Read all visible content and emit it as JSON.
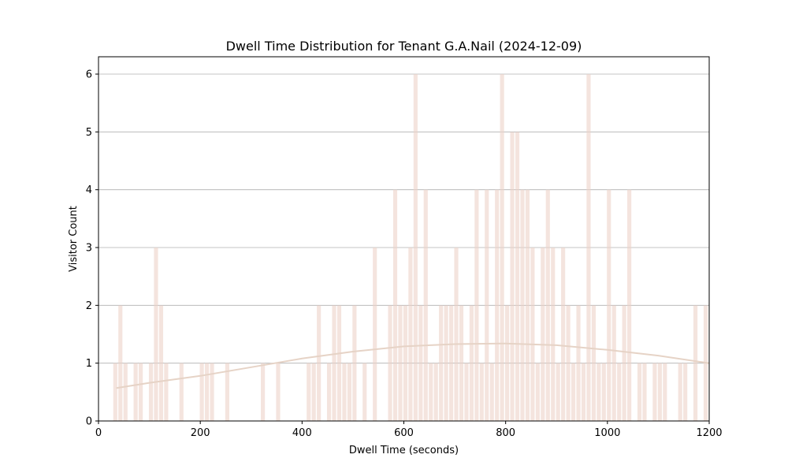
{
  "chart_data": {
    "type": "bar",
    "title": "Dwell Time Distribution for Tenant G.A.Nail (2024-12-09)",
    "xlabel": "Dwell Time (seconds)",
    "ylabel": "Visitor Count",
    "xlim": [
      0,
      1200
    ],
    "ylim": [
      0,
      6.3
    ],
    "xticks": [
      0,
      200,
      400,
      600,
      800,
      1000,
      1200
    ],
    "yticks": [
      0,
      1,
      2,
      3,
      4,
      5,
      6
    ],
    "grid": "y",
    "bar_color": "#ecd2c8",
    "bar_width": 8,
    "bars": [
      {
        "x": 33,
        "count": 1
      },
      {
        "x": 43,
        "count": 2
      },
      {
        "x": 53,
        "count": 1
      },
      {
        "x": 73,
        "count": 1
      },
      {
        "x": 83,
        "count": 1
      },
      {
        "x": 103,
        "count": 1
      },
      {
        "x": 113,
        "count": 3
      },
      {
        "x": 123,
        "count": 2
      },
      {
        "x": 133,
        "count": 1
      },
      {
        "x": 163,
        "count": 1
      },
      {
        "x": 203,
        "count": 1
      },
      {
        "x": 213,
        "count": 1
      },
      {
        "x": 223,
        "count": 1
      },
      {
        "x": 253,
        "count": 1
      },
      {
        "x": 323,
        "count": 1
      },
      {
        "x": 353,
        "count": 1
      },
      {
        "x": 413,
        "count": 1
      },
      {
        "x": 423,
        "count": 1
      },
      {
        "x": 433,
        "count": 2
      },
      {
        "x": 453,
        "count": 1
      },
      {
        "x": 463,
        "count": 2
      },
      {
        "x": 473,
        "count": 2
      },
      {
        "x": 483,
        "count": 1
      },
      {
        "x": 493,
        "count": 1
      },
      {
        "x": 503,
        "count": 2
      },
      {
        "x": 523,
        "count": 1
      },
      {
        "x": 543,
        "count": 3
      },
      {
        "x": 573,
        "count": 2
      },
      {
        "x": 583,
        "count": 4
      },
      {
        "x": 593,
        "count": 2
      },
      {
        "x": 603,
        "count": 2
      },
      {
        "x": 613,
        "count": 3
      },
      {
        "x": 623,
        "count": 6
      },
      {
        "x": 633,
        "count": 2
      },
      {
        "x": 643,
        "count": 4
      },
      {
        "x": 653,
        "count": 1
      },
      {
        "x": 663,
        "count": 1
      },
      {
        "x": 673,
        "count": 2
      },
      {
        "x": 683,
        "count": 2
      },
      {
        "x": 693,
        "count": 2
      },
      {
        "x": 703,
        "count": 3
      },
      {
        "x": 713,
        "count": 2
      },
      {
        "x": 723,
        "count": 1
      },
      {
        "x": 733,
        "count": 2
      },
      {
        "x": 743,
        "count": 4
      },
      {
        "x": 753,
        "count": 1
      },
      {
        "x": 763,
        "count": 4
      },
      {
        "x": 773,
        "count": 1
      },
      {
        "x": 783,
        "count": 4
      },
      {
        "x": 793,
        "count": 6
      },
      {
        "x": 803,
        "count": 2
      },
      {
        "x": 813,
        "count": 5
      },
      {
        "x": 823,
        "count": 5
      },
      {
        "x": 833,
        "count": 4
      },
      {
        "x": 843,
        "count": 4
      },
      {
        "x": 853,
        "count": 3
      },
      {
        "x": 863,
        "count": 1
      },
      {
        "x": 873,
        "count": 3
      },
      {
        "x": 883,
        "count": 4
      },
      {
        "x": 893,
        "count": 3
      },
      {
        "x": 903,
        "count": 1
      },
      {
        "x": 913,
        "count": 3
      },
      {
        "x": 923,
        "count": 2
      },
      {
        "x": 933,
        "count": 1
      },
      {
        "x": 943,
        "count": 2
      },
      {
        "x": 953,
        "count": 1
      },
      {
        "x": 963,
        "count": 6
      },
      {
        "x": 973,
        "count": 2
      },
      {
        "x": 983,
        "count": 1
      },
      {
        "x": 993,
        "count": 1
      },
      {
        "x": 1003,
        "count": 4
      },
      {
        "x": 1013,
        "count": 2
      },
      {
        "x": 1023,
        "count": 1
      },
      {
        "x": 1033,
        "count": 2
      },
      {
        "x": 1043,
        "count": 4
      },
      {
        "x": 1063,
        "count": 1
      },
      {
        "x": 1073,
        "count": 1
      },
      {
        "x": 1093,
        "count": 1
      },
      {
        "x": 1103,
        "count": 1
      },
      {
        "x": 1113,
        "count": 1
      },
      {
        "x": 1143,
        "count": 1
      },
      {
        "x": 1153,
        "count": 1
      },
      {
        "x": 1173,
        "count": 2
      },
      {
        "x": 1193,
        "count": 2
      }
    ],
    "curve": {
      "type": "line",
      "color": "#e6d3c6",
      "x": [
        35,
        100,
        200,
        300,
        400,
        500,
        600,
        700,
        800,
        900,
        1000,
        1100,
        1200
      ],
      "y": [
        0.57,
        0.66,
        0.78,
        0.93,
        1.08,
        1.2,
        1.29,
        1.33,
        1.34,
        1.31,
        1.23,
        1.13,
        1.0
      ]
    }
  }
}
